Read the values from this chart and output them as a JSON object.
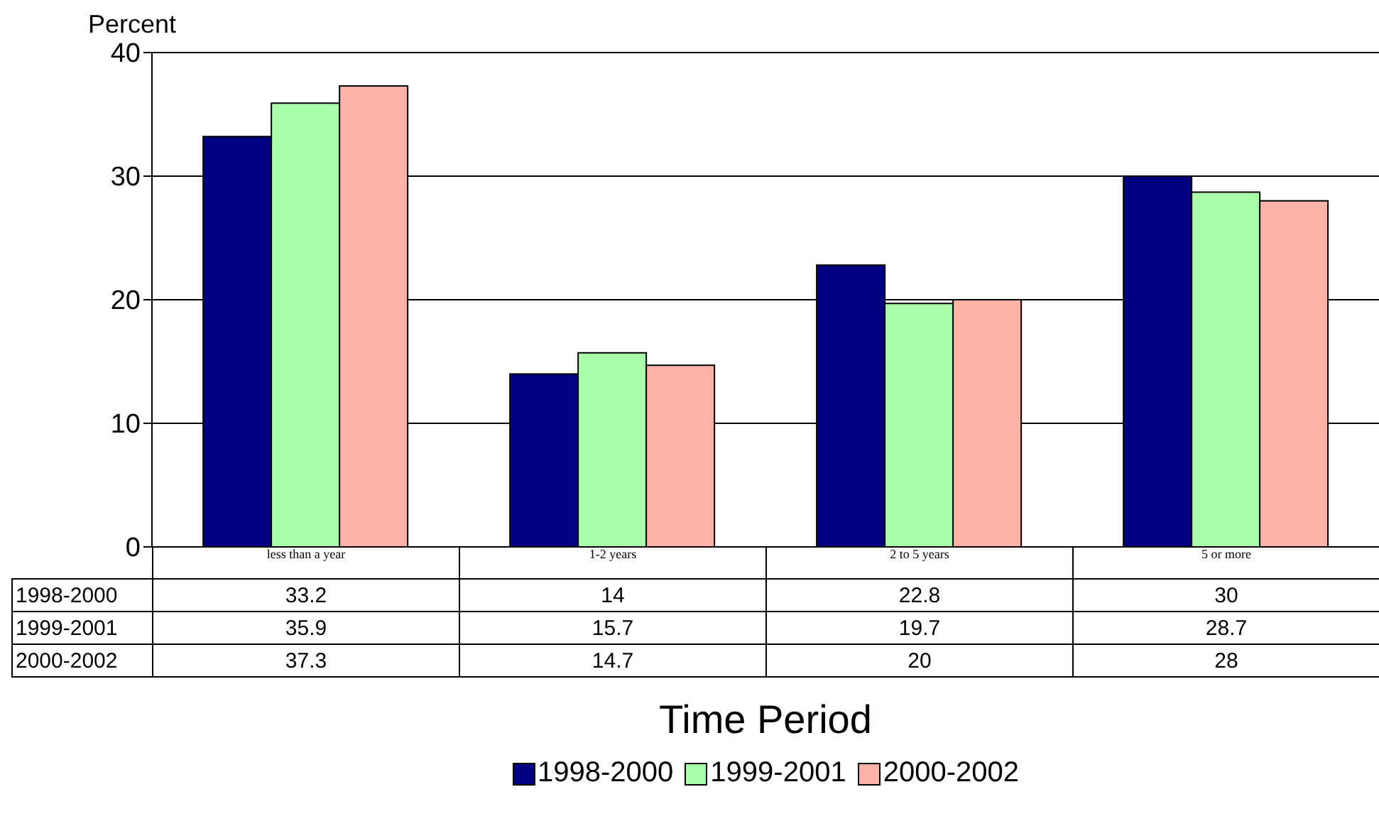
{
  "chart_data": {
    "type": "bar",
    "ylabel": "Percent",
    "xlabel": "Time Period",
    "categories": [
      "less than a year",
      "1-2 years",
      "2 to 5 years",
      "5 or more"
    ],
    "series": [
      {
        "name": "1998-2000",
        "color": "#000080",
        "values": [
          33.2,
          14,
          22.8,
          30
        ]
      },
      {
        "name": "1999-2001",
        "color": "#aaffaa",
        "values": [
          35.9,
          15.7,
          19.7,
          28.7
        ]
      },
      {
        "name": "2000-2002",
        "color": "#ffb3a7",
        "values": [
          37.3,
          14.7,
          20,
          28
        ]
      }
    ],
    "ylim": [
      0,
      40
    ],
    "yticks": [
      0,
      10,
      20,
      30,
      40
    ],
    "grid": "y",
    "legend": "bottom",
    "data_labels": true
  }
}
